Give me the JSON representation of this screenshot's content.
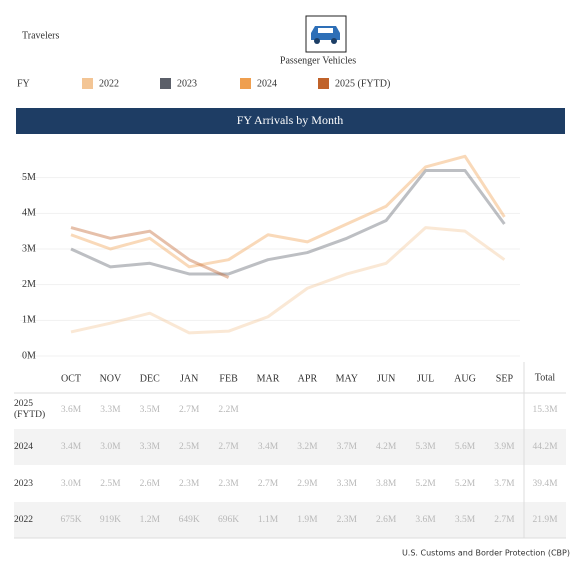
{
  "header": {
    "title": "Travelers",
    "mode": "Passenger Vehicles"
  },
  "chart_data": {
    "type": "line",
    "title": "FY Arrivals by Month",
    "legend_title": "FY",
    "categories": [
      "OCT",
      "NOV",
      "DEC",
      "JAN",
      "FEB",
      "MAR",
      "APR",
      "MAY",
      "JUN",
      "JUL",
      "AUG",
      "SEP"
    ],
    "series": [
      {
        "name": "2022",
        "color": "#f3c595",
        "values": [
          675000,
          919000,
          1200000,
          649000,
          696000,
          1100000,
          1900000,
          2300000,
          2600000,
          3600000,
          3500000,
          2700000
        ],
        "value_labels": [
          "675K",
          "919K",
          "1.2M",
          "649K",
          "696K",
          "1.1M",
          "1.9M",
          "2.3M",
          "2.6M",
          "3.6M",
          "3.5M",
          "2.7M"
        ],
        "total": "21.9M"
      },
      {
        "name": "2023",
        "color": "#5b5f69",
        "values": [
          3000000,
          2500000,
          2600000,
          2300000,
          2300000,
          2700000,
          2900000,
          3300000,
          3800000,
          5200000,
          5200000,
          3700000
        ],
        "value_labels": [
          "3.0M",
          "2.5M",
          "2.6M",
          "2.3M",
          "2.3M",
          "2.7M",
          "2.9M",
          "3.3M",
          "3.8M",
          "5.2M",
          "5.2M",
          "3.7M"
        ],
        "total": "39.4M"
      },
      {
        "name": "2024",
        "color": "#ef9f4f",
        "values": [
          3400000,
          3000000,
          3300000,
          2500000,
          2700000,
          3400000,
          3200000,
          3700000,
          4200000,
          5300000,
          5600000,
          3900000
        ],
        "value_labels": [
          "3.4M",
          "3.0M",
          "3.3M",
          "2.5M",
          "2.7M",
          "3.4M",
          "3.2M",
          "3.7M",
          "4.2M",
          "5.3M",
          "5.6M",
          "3.9M"
        ],
        "total": "44.2M"
      },
      {
        "name": "2025 (FYTD)",
        "color": "#c0622a",
        "values": [
          3600000,
          3300000,
          3500000,
          2700000,
          2200000,
          null,
          null,
          null,
          null,
          null,
          null,
          null
        ],
        "value_labels": [
          "3.6M",
          "3.3M",
          "3.5M",
          "2.7M",
          "2.2M",
          null,
          null,
          null,
          null,
          null,
          null,
          null
        ],
        "total": "15.3M"
      }
    ],
    "ylim": [
      0,
      6000000
    ],
    "yticks": [
      {
        "value": 0,
        "label": "0M"
      },
      {
        "value": 1000000,
        "label": "1M"
      },
      {
        "value": 2000000,
        "label": "2M"
      },
      {
        "value": 3000000,
        "label": "3M"
      },
      {
        "value": 4000000,
        "label": "4M"
      },
      {
        "value": 5000000,
        "label": "5M"
      }
    ],
    "grid": true,
    "total_header": "Total"
  },
  "source": "U.S. Customs and Border Protection (CBP)"
}
